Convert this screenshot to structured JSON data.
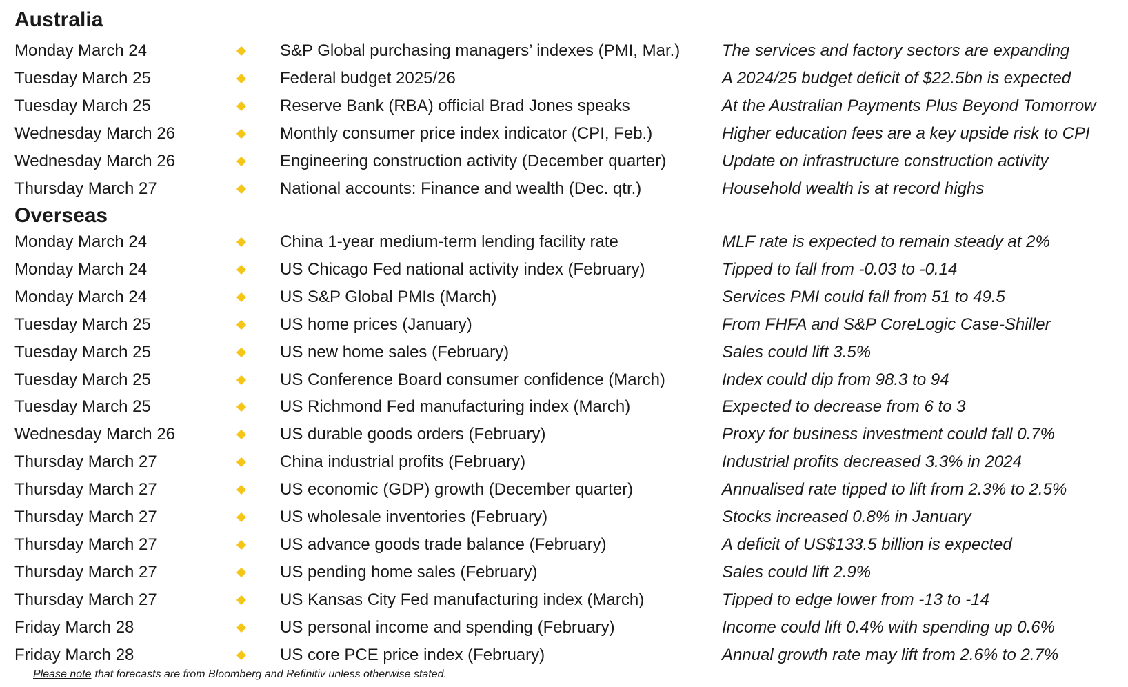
{
  "sections": [
    {
      "title": "Australia",
      "rows": [
        [
          "Monday March 24",
          "S&P Global purchasing managers’ indexes (PMI, Mar.)",
          "The services and factory sectors are expanding"
        ],
        [
          "Tuesday March 25",
          "Federal budget 2025/26",
          "A 2024/25 budget deficit of $22.5bn is expected"
        ],
        [
          "Tuesday March 25",
          "Reserve Bank (RBA) official Brad Jones speaks",
          "At the Australian Payments Plus Beyond Tomorrow"
        ],
        [
          "Wednesday March 26",
          "Monthly consumer price index indicator (CPI, Feb.)",
          "Higher education fees are a key upside risk to CPI"
        ],
        [
          "Wednesday March 26",
          "Engineering construction activity (December quarter)",
          "Update on infrastructure construction activity"
        ],
        [
          "Thursday March 27",
          "National accounts: Finance and wealth (Dec. qtr.)",
          "Household wealth is at record highs"
        ]
      ]
    },
    {
      "title": "Overseas",
      "rows": [
        [
          "Monday March 24",
          "China 1-year medium-term lending facility rate",
          "MLF rate is expected to remain steady at 2%"
        ],
        [
          "Monday March 24",
          "US Chicago Fed national activity index (February)",
          "Tipped to fall from -0.03 to -0.14"
        ],
        [
          "Monday March 24",
          "US S&P Global PMIs (March)",
          "Services PMI could fall from 51 to 49.5"
        ],
        [
          "Tuesday March 25",
          "US home prices (January)",
          "From FHFA and S&P CoreLogic Case-Shiller"
        ],
        [
          "Tuesday March 25",
          "US new home sales (February)",
          "Sales could lift 3.5%"
        ],
        [
          "Tuesday March 25",
          "US Conference Board consumer confidence (March)",
          "Index could dip from 98.3 to 94"
        ],
        [
          "Tuesday March 25",
          "US Richmond Fed manufacturing index (March)",
          "Expected to decrease from 6 to 3"
        ],
        [
          "Wednesday March 26",
          "US durable goods orders (February)",
          "Proxy for business investment could fall 0.7%"
        ],
        [
          "Thursday March 27",
          "China industrial profits (February)",
          "Industrial profits decreased 3.3% in 2024"
        ],
        [
          "Thursday March 27",
          "US economic (GDP) growth (December quarter)",
          "Annualised rate tipped to lift from 2.3% to 2.5%"
        ],
        [
          "Thursday March 27",
          "US wholesale inventories (February)",
          "Stocks increased 0.8% in January"
        ],
        [
          "Thursday March 27",
          "US advance goods trade balance (February)",
          "A deficit of US$133.5 billion is expected"
        ],
        [
          "Thursday March 27",
          "US pending home sales (February)",
          "Sales could lift 2.9%"
        ],
        [
          "Thursday March 27",
          "US Kansas City Fed manufacturing index (March)",
          "Tipped to edge lower from -13 to -14"
        ],
        [
          "Friday March 28",
          "US personal income and spending (February)",
          "Income could lift 0.4% with spending up 0.6%"
        ],
        [
          "Friday March 28",
          "US core PCE price index (February)",
          "Annual growth rate may lift from 2.6% to 2.7%"
        ]
      ]
    }
  ],
  "footnote": {
    "emphasis": "Please note",
    "text": "that forecasts are from Bloomberg and Refinitiv unless otherwise stated."
  }
}
